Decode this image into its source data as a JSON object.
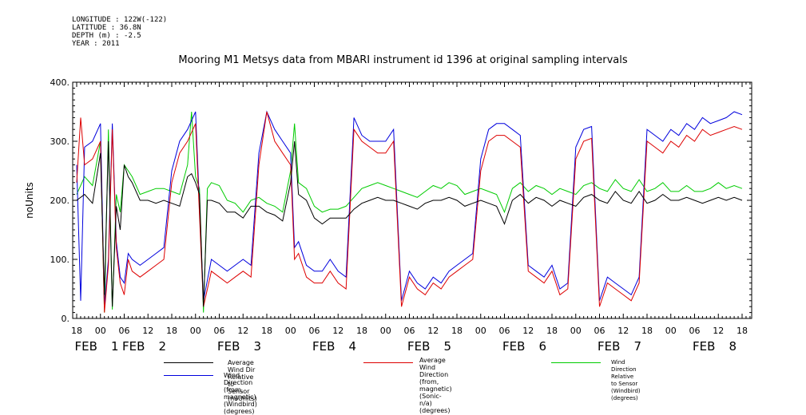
{
  "meta": {
    "longitude": "LONGITUDE : 122W(-122)",
    "latitude": "LATITUDE : 36.8N",
    "depth": "DEPTH (m) : -2.5",
    "year": "YEAR : 2011"
  },
  "chart_data": {
    "type": "line",
    "title": "Mooring M1 Metsys data from MBARI instrument id 1396 at original sampling intervals",
    "ylabel": "noUnits",
    "xlabel": "",
    "ylim": [
      0,
      400
    ],
    "xlim": [
      0,
      168
    ],
    "x_unit": "hours since FEB 1 18:00 (axis labelled by hour of day and date)",
    "y_ticks": [
      "0.",
      "100.",
      "200.",
      "300.",
      "400."
    ],
    "y_tick_values": [
      0,
      100,
      200,
      300,
      400
    ],
    "x_tick_labels": [
      "18",
      "00",
      "06",
      "12",
      "18",
      "00",
      "06",
      "12",
      "18",
      "00",
      "06",
      "12",
      "18",
      "00",
      "06",
      "12",
      "18",
      "00",
      "06",
      "12",
      "18",
      "00",
      "06",
      "12",
      "18",
      "00",
      "06",
      "12",
      "18"
    ],
    "date_labels": [
      {
        "month": "FEB",
        "day": "1",
        "at_hour": 6
      },
      {
        "month": "FEB",
        "day": "2",
        "at_hour": 18
      },
      {
        "month": "FEB",
        "day": "3",
        "at_hour": 42
      },
      {
        "month": "FEB",
        "day": "4",
        "at_hour": 66
      },
      {
        "month": "FEB",
        "day": "5",
        "at_hour": 90
      },
      {
        "month": "FEB",
        "day": "6",
        "at_hour": 114
      },
      {
        "month": "FEB",
        "day": "7",
        "at_hour": 138
      },
      {
        "month": "FEB",
        "day": "8",
        "at_hour": 162
      }
    ],
    "legend_position": "bottom",
    "series": [
      {
        "name": "Average Wind Dir Relative to Sensor (noUnits)",
        "color": "#000000",
        "x": [
          0,
          2,
          4,
          6,
          7,
          8,
          9,
          10,
          11,
          12,
          13,
          14,
          16,
          18,
          20,
          22,
          24,
          26,
          28,
          29,
          30,
          31,
          32,
          33,
          34,
          36,
          38,
          40,
          42,
          44,
          46,
          48,
          50,
          52,
          54,
          55,
          56,
          58,
          60,
          62,
          64,
          66,
          68,
          70,
          72,
          74,
          76,
          78,
          80,
          82,
          84,
          86,
          88,
          90,
          92,
          94,
          96,
          98,
          100,
          102,
          104,
          106,
          108,
          110,
          112,
          114,
          116,
          118,
          120,
          122,
          124,
          126,
          128,
          130,
          132,
          134,
          136,
          138,
          140,
          142,
          144,
          146,
          148,
          150,
          152,
          154,
          156,
          158,
          160,
          162,
          164,
          166,
          168
        ],
        "y": [
          200,
          210,
          195,
          280,
          40,
          300,
          20,
          190,
          150,
          260,
          240,
          230,
          200,
          200,
          195,
          200,
          195,
          190,
          240,
          245,
          230,
          210,
          20,
          200,
          200,
          195,
          180,
          180,
          170,
          190,
          190,
          180,
          175,
          165,
          230,
          300,
          210,
          200,
          170,
          160,
          170,
          170,
          170,
          185,
          195,
          200,
          205,
          200,
          200,
          195,
          190,
          185,
          195,
          200,
          200,
          205,
          200,
          190,
          195,
          200,
          195,
          190,
          160,
          200,
          210,
          195,
          205,
          200,
          190,
          200,
          195,
          190,
          205,
          210,
          200,
          195,
          215,
          200,
          195,
          215,
          195,
          200,
          210,
          200,
          200,
          205,
          200,
          195,
          200,
          205,
          200,
          205,
          200
        ]
      },
      {
        "name": "Average Wind Direction (from, magnetic) (Sonic-n/a) (degrees)",
        "color": "#dd0000",
        "x": [
          0,
          1,
          2,
          4,
          6,
          7,
          8,
          9,
          10,
          11,
          12,
          13,
          14,
          16,
          18,
          20,
          22,
          24,
          26,
          28,
          30,
          32,
          34,
          36,
          38,
          40,
          42,
          44,
          46,
          48,
          50,
          52,
          54,
          55,
          56,
          58,
          60,
          62,
          64,
          66,
          68,
          70,
          72,
          74,
          76,
          78,
          80,
          82,
          84,
          86,
          88,
          90,
          92,
          94,
          96,
          98,
          100,
          102,
          104,
          106,
          108,
          110,
          112,
          114,
          116,
          118,
          120,
          122,
          124,
          126,
          128,
          130,
          132,
          134,
          136,
          138,
          140,
          142,
          144,
          146,
          148,
          150,
          152,
          154,
          156,
          158,
          160,
          162,
          164,
          166,
          168
        ],
        "y": [
          230,
          340,
          260,
          270,
          300,
          10,
          90,
          320,
          120,
          60,
          40,
          100,
          80,
          70,
          80,
          90,
          100,
          230,
          280,
          300,
          330,
          20,
          80,
          70,
          60,
          70,
          80,
          70,
          260,
          350,
          300,
          280,
          260,
          100,
          110,
          70,
          60,
          60,
          80,
          60,
          50,
          320,
          300,
          290,
          280,
          280,
          300,
          20,
          70,
          50,
          40,
          60,
          50,
          70,
          80,
          90,
          100,
          250,
          300,
          310,
          310,
          300,
          290,
          80,
          70,
          60,
          80,
          40,
          50,
          270,
          300,
          305,
          20,
          60,
          50,
          40,
          30,
          60,
          300,
          290,
          280,
          300,
          290,
          310,
          300,
          320,
          310,
          315,
          320,
          325,
          320
        ]
      },
      {
        "name": "Wind Direction Relative to Sensor (Windbird) (degrees)",
        "color": "#00cc00",
        "x": [
          0,
          2,
          4,
          6,
          7,
          8,
          9,
          10,
          11,
          12,
          13,
          14,
          16,
          18,
          20,
          22,
          24,
          26,
          28,
          29,
          30,
          31,
          32,
          33,
          34,
          36,
          38,
          40,
          42,
          44,
          46,
          48,
          50,
          52,
          54,
          55,
          56,
          58,
          60,
          62,
          64,
          66,
          68,
          70,
          72,
          74,
          76,
          78,
          80,
          82,
          84,
          86,
          88,
          90,
          92,
          94,
          96,
          98,
          100,
          102,
          104,
          106,
          108,
          110,
          112,
          114,
          116,
          118,
          120,
          122,
          124,
          126,
          128,
          130,
          132,
          134,
          136,
          138,
          140,
          142,
          144,
          146,
          148,
          150,
          152,
          154,
          156,
          158,
          160,
          162,
          164,
          166,
          168
        ],
        "y": [
          210,
          240,
          225,
          300,
          10,
          320,
          15,
          210,
          180,
          260,
          250,
          240,
          210,
          215,
          220,
          220,
          215,
          210,
          260,
          350,
          240,
          220,
          10,
          220,
          230,
          225,
          200,
          195,
          180,
          200,
          205,
          195,
          190,
          180,
          250,
          330,
          230,
          220,
          190,
          180,
          185,
          185,
          190,
          205,
          220,
          225,
          230,
          225,
          220,
          215,
          210,
          205,
          215,
          225,
          220,
          230,
          225,
          210,
          215,
          220,
          215,
          210,
          180,
          220,
          230,
          215,
          225,
          220,
          210,
          220,
          215,
          210,
          225,
          230,
          220,
          215,
          235,
          220,
          215,
          235,
          215,
          220,
          230,
          215,
          215,
          225,
          215,
          215,
          220,
          230,
          220,
          225,
          220
        ]
      },
      {
        "name": "Wind Direction (from, magnetic) (Windbird) (degrees)",
        "color": "#0000dd",
        "x": [
          0,
          1,
          2,
          4,
          6,
          7,
          8,
          9,
          10,
          11,
          12,
          13,
          14,
          16,
          18,
          20,
          22,
          24,
          26,
          28,
          30,
          32,
          34,
          36,
          38,
          40,
          42,
          44,
          46,
          48,
          50,
          52,
          54,
          55,
          56,
          58,
          60,
          62,
          64,
          66,
          68,
          70,
          72,
          74,
          76,
          78,
          80,
          82,
          84,
          86,
          88,
          90,
          92,
          94,
          96,
          98,
          100,
          102,
          104,
          106,
          108,
          110,
          112,
          114,
          116,
          118,
          120,
          122,
          124,
          126,
          128,
          130,
          132,
          134,
          136,
          138,
          140,
          142,
          144,
          146,
          148,
          150,
          152,
          154,
          156,
          158,
          160,
          162,
          164,
          166,
          168
        ],
        "y": [
          260,
          30,
          290,
          300,
          330,
          20,
          100,
          330,
          130,
          70,
          60,
          110,
          100,
          90,
          100,
          110,
          120,
          250,
          300,
          320,
          350,
          30,
          100,
          90,
          80,
          90,
          100,
          90,
          280,
          350,
          320,
          300,
          280,
          120,
          130,
          90,
          80,
          80,
          100,
          80,
          70,
          340,
          310,
          300,
          300,
          300,
          320,
          30,
          80,
          60,
          50,
          70,
          60,
          80,
          90,
          100,
          110,
          270,
          320,
          330,
          330,
          320,
          310,
          90,
          80,
          70,
          90,
          50,
          60,
          290,
          320,
          325,
          30,
          70,
          60,
          50,
          40,
          70,
          320,
          310,
          300,
          320,
          310,
          330,
          320,
          340,
          330,
          335,
          340,
          350,
          345
        ]
      }
    ]
  },
  "legend": [
    {
      "label": "Average Wind Dir Relative to Sensor (noUnits)"
    },
    {
      "label": "Average Wind Direction (from,\nmagnetic) (Sonic-n/a) (degrees)"
    },
    {
      "label": "Wind Direction Relative to Sensor (Windbird) (degrees)"
    },
    {
      "label": "Wind Direction (from,\nmagnetic) (Windbird) (degrees)"
    }
  ]
}
